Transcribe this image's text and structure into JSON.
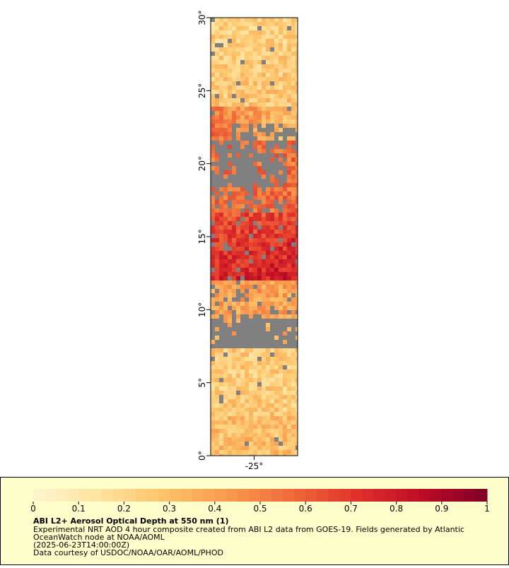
{
  "chart_data": {
    "type": "map",
    "title": "ABI L2+ Aerosol Optical Depth at 550 nm (1)",
    "description": [
      "Experimental NRT AOD 4 hour composite created from ABI L2 data from GOES-19. Fields generated by Atlantic",
      "OceanWatch node at NOAA/AOML",
      "(2025-06-23T14:00:00Z)",
      "Data courtesy of USDOC/NOAA/OAR/AOML/PHOD"
    ],
    "ylim": [
      0,
      30
    ],
    "yticks": [
      {
        "value": 0,
        "label": "0°"
      },
      {
        "value": 5,
        "label": "5°"
      },
      {
        "value": 10,
        "label": "10°"
      },
      {
        "value": 15,
        "label": "15°"
      },
      {
        "value": 20,
        "label": "20°"
      },
      {
        "value": 25,
        "label": "25°"
      },
      {
        "value": 30,
        "label": "30°"
      }
    ],
    "xlim": [
      -28,
      -22
    ],
    "xticks": [
      {
        "value": -25,
        "label": "-25°"
      }
    ],
    "missing_color": "#808080",
    "colorbar": {
      "lim": [
        0,
        1
      ],
      "ticks": [
        0,
        0.1,
        0.2,
        0.3,
        0.4,
        0.5,
        0.6,
        0.7,
        0.8,
        0.9,
        1
      ],
      "colors": [
        "#fff5d0",
        "#ffe3a0",
        "#fdc46a",
        "#f99a4e",
        "#ef6a3a",
        "#e0302a",
        "#bd0c26",
        "#800026"
      ]
    }
  }
}
